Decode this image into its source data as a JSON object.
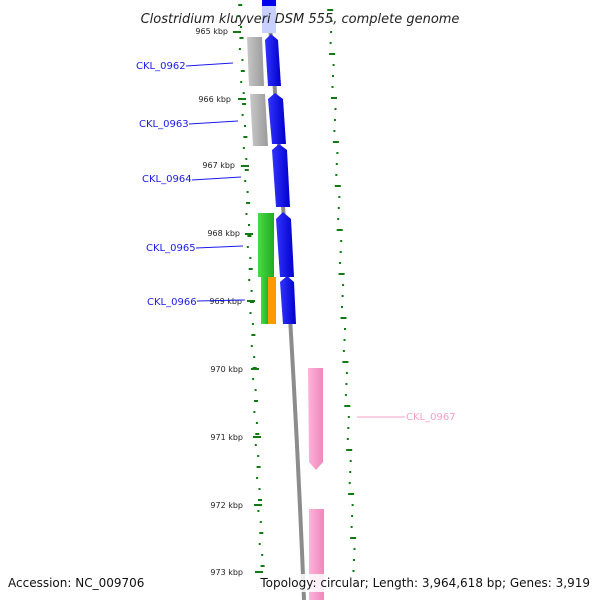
{
  "map": {
    "title": "Clostridium kluyveri DSM 555, complete genome",
    "accession_text": "Accession: NC_009706",
    "topology_text": "Topology: circular; Length: 3,964,618 bp; Genes: 3,919"
  },
  "positions": [
    {
      "label": "965 kbp"
    },
    {
      "label": "966 kbp"
    },
    {
      "label": "967 kbp"
    },
    {
      "label": "968 kbp"
    },
    {
      "label": "969 kbp"
    },
    {
      "label": "970 kbp"
    },
    {
      "label": "971 kbp"
    },
    {
      "label": "972 kbp"
    },
    {
      "label": "973 kbp"
    }
  ],
  "genes": [
    {
      "label": "CKL_0962",
      "color": "#1a1aee"
    },
    {
      "label": "CKL_0963",
      "color": "#1a1aee"
    },
    {
      "label": "CKL_0964",
      "color": "#1a1aee"
    },
    {
      "label": "CKL_0965",
      "color": "#1a1aee"
    },
    {
      "label": "CKL_0966",
      "color": "#1a1aee"
    },
    {
      "label": "CKL_0967",
      "color": "#f5a0c8"
    }
  ],
  "colors": {
    "forward_cds": "#0000ee",
    "reverse_cds": "#ff99cc",
    "grey_feature": "#b3b3b3",
    "green_feature": "#33cc33",
    "orange_feature": "#ff9900",
    "gc_ticks": "#127a12",
    "backbone": "#8c8c8c"
  }
}
